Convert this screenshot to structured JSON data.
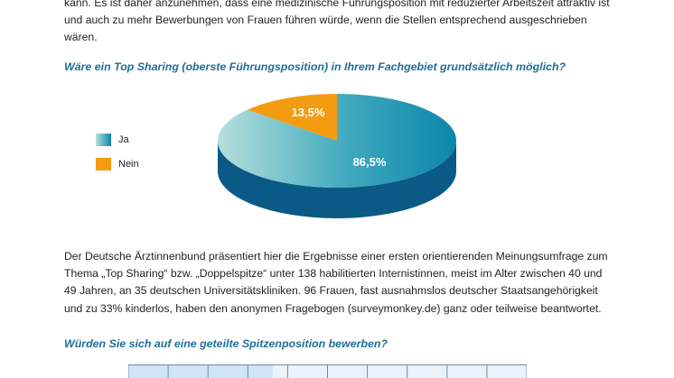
{
  "intro_text": "kann. Es ist daher anzunehmen, dass eine medizinische Führungsposition mit reduzierter Arbeitszeit attraktiv ist und auch zu mehr Bewerbungen von Frauen führen würde, wenn die Stellen entsprechend ausgeschrieben wären.",
  "question1": "Wäre ein Top Sharing (oberste Führungsposition) in Ihrem Fachgebiet grundsätzlich möglich?",
  "chart_data": {
    "type": "pie",
    "categories": [
      "Ja",
      "Nein"
    ],
    "values": [
      86.5,
      13.5
    ],
    "data_labels": [
      "86,5%",
      "13,5%"
    ],
    "colors": [
      "#1a8fb0",
      "#f39c12"
    ],
    "legend_position": "left"
  },
  "legend": [
    {
      "label": "Ja",
      "color": "#1a8fb0"
    },
    {
      "label": "Nein",
      "color": "#f39c12"
    }
  ],
  "body_text": "Der Deutsche Ärztinnenbund präsentiert hier die Ergebnisse einer ersten orientierenden Meinungsumfrage zum Thema „Top Sharing“ bzw. „Doppelspitze“ unter 138 habilitierten Internistinnen, meist im Alter zwischen 40 und 49 Jahren, an 35 deutschen Universitätskliniken. 96 Frauen, fast ausnahmslos deutscher Staatsangehörigkeit und zu 33% kinderlos, haben den anonymen Fragebogen (surveymonkey.de) ganz oder teilweise beantwortet.",
  "question2": "Würden Sie sich auf eine geteilte Spitzenposition bewerben?"
}
